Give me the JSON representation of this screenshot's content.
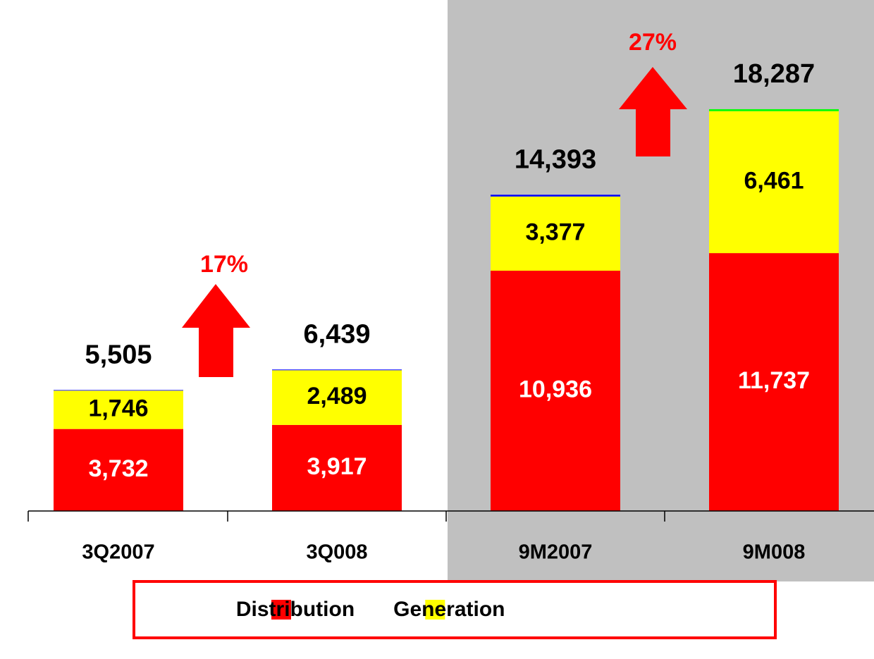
{
  "chart_data": {
    "type": "stacked-bar",
    "categories": [
      "3Q2007",
      "3Q008",
      "9M2007",
      "9M008"
    ],
    "series": [
      {
        "name": "Distribution",
        "color": "#ff0000",
        "values": [
          3732,
          3917,
          10936,
          11737
        ],
        "value_labels": [
          "3,732",
          "3,917",
          "10,936",
          "11,737"
        ],
        "label_color": "#ffffff"
      },
      {
        "name": "Generation",
        "color": "#ffff00",
        "values": [
          1746,
          2489,
          3377,
          6461
        ],
        "value_labels": [
          "1,746",
          "2,489",
          "3,377",
          "6,461"
        ],
        "label_color": "#000000"
      },
      {
        "colors": [
          "#0000ff",
          "#0000ff",
          "#0000ff",
          "#00ff00"
        ],
        "values": [
          27,
          33,
          80,
          89
        ]
      }
    ],
    "totals": [
      5505,
      6439,
      14393,
      18287
    ],
    "total_labels": [
      "5,505",
      "6,439",
      "14,393",
      "18,287"
    ],
    "annotations": [
      "17%",
      "27%"
    ],
    "ylim": [
      0,
      23000
    ]
  }
}
